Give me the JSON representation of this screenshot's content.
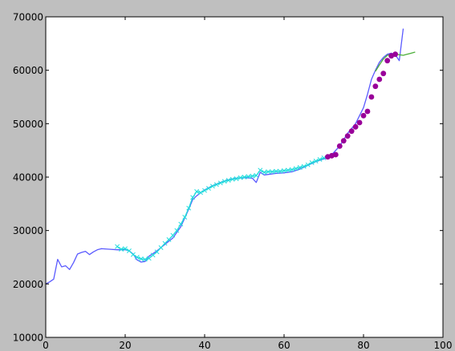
{
  "chart_data": {
    "type": "line",
    "title": "",
    "xlabel": "",
    "ylabel": "",
    "xlim": [
      0,
      100
    ],
    "ylim": [
      10000,
      70000
    ],
    "x_ticks": [
      0,
      20,
      40,
      60,
      80,
      100
    ],
    "y_ticks": [
      10000,
      20000,
      30000,
      40000,
      50000,
      60000,
      70000
    ],
    "x_tick_labels": [
      "0",
      "20",
      "40",
      "60",
      "80",
      "100"
    ],
    "y_tick_labels": [
      "10000",
      "20000",
      "30000",
      "40000",
      "50000",
      "60000",
      "70000"
    ],
    "grid": false,
    "legend": false,
    "series": [
      {
        "kind": "line",
        "color": "#5a5aff",
        "points": [
          [
            0,
            20000
          ],
          [
            1,
            20400
          ],
          [
            2,
            20900
          ],
          [
            3,
            24600
          ],
          [
            4,
            23200
          ],
          [
            5,
            23400
          ],
          [
            6,
            22700
          ],
          [
            7,
            24000
          ],
          [
            8,
            25600
          ],
          [
            9,
            25900
          ],
          [
            10,
            26100
          ],
          [
            11,
            25500
          ],
          [
            12,
            26000
          ],
          [
            13,
            26400
          ],
          [
            14,
            26600
          ],
          [
            16,
            26500
          ],
          [
            18,
            26400
          ],
          [
            20,
            26400
          ],
          [
            21,
            26200
          ],
          [
            22,
            25600
          ],
          [
            23,
            24500
          ],
          [
            24,
            24100
          ],
          [
            25,
            24200
          ],
          [
            26,
            25200
          ],
          [
            28,
            26200
          ],
          [
            30,
            27400
          ],
          [
            32,
            28600
          ],
          [
            34,
            30700
          ],
          [
            36,
            34000
          ],
          [
            37,
            35800
          ],
          [
            38,
            36500
          ],
          [
            40,
            37600
          ],
          [
            42,
            38400
          ],
          [
            44,
            39000
          ],
          [
            46,
            39500
          ],
          [
            48,
            39800
          ],
          [
            50,
            39900
          ],
          [
            52,
            39800
          ],
          [
            53,
            39000
          ],
          [
            54,
            40900
          ],
          [
            55,
            40400
          ],
          [
            56,
            40500
          ],
          [
            58,
            40700
          ],
          [
            60,
            40800
          ],
          [
            62,
            41000
          ],
          [
            64,
            41500
          ],
          [
            66,
            42200
          ],
          [
            68,
            42900
          ],
          [
            70,
            43400
          ],
          [
            72,
            44200
          ],
          [
            74,
            45800
          ],
          [
            76,
            48200
          ],
          [
            78,
            50000
          ],
          [
            79,
            51500
          ],
          [
            80,
            53000
          ],
          [
            81,
            55500
          ],
          [
            82,
            58300
          ],
          [
            83,
            60000
          ],
          [
            84,
            61500
          ],
          [
            85,
            62400
          ],
          [
            86,
            63000
          ],
          [
            87,
            63200
          ],
          [
            88,
            62900
          ],
          [
            89,
            61800
          ],
          [
            90,
            67800
          ]
        ]
      },
      {
        "kind": "line-x",
        "color": "#22dcdc",
        "points": [
          [
            18,
            27000
          ],
          [
            19,
            26500
          ],
          [
            20,
            26600
          ],
          [
            21,
            26200
          ],
          [
            22,
            25500
          ],
          [
            23,
            25000
          ],
          [
            24,
            24700
          ],
          [
            25,
            24600
          ],
          [
            26,
            24800
          ],
          [
            27,
            25400
          ],
          [
            28,
            26000
          ],
          [
            29,
            26800
          ],
          [
            30,
            27600
          ],
          [
            31,
            28300
          ],
          [
            32,
            29100
          ],
          [
            33,
            30000
          ],
          [
            34,
            31200
          ],
          [
            35,
            32500
          ],
          [
            36,
            34200
          ],
          [
            37,
            36200
          ],
          [
            38,
            37300
          ],
          [
            39,
            37100
          ],
          [
            40,
            37500
          ],
          [
            41,
            37900
          ],
          [
            42,
            38300
          ],
          [
            43,
            38600
          ],
          [
            44,
            38900
          ],
          [
            45,
            39200
          ],
          [
            46,
            39400
          ],
          [
            47,
            39600
          ],
          [
            48,
            39700
          ],
          [
            49,
            39900
          ],
          [
            50,
            40000
          ],
          [
            51,
            40100
          ],
          [
            52,
            40200
          ],
          [
            53,
            40300
          ],
          [
            54,
            41300
          ],
          [
            55,
            40900
          ],
          [
            56,
            41000
          ],
          [
            57,
            41000
          ],
          [
            58,
            41100
          ],
          [
            59,
            41100
          ],
          [
            60,
            41200
          ],
          [
            61,
            41300
          ],
          [
            62,
            41400
          ],
          [
            63,
            41600
          ],
          [
            64,
            41800
          ],
          [
            65,
            42000
          ],
          [
            66,
            42300
          ],
          [
            67,
            42700
          ],
          [
            68,
            43000
          ],
          [
            69,
            43300
          ],
          [
            70,
            43600
          ]
        ]
      },
      {
        "kind": "line",
        "color": "#4caf3a",
        "points": [
          [
            83,
            59800
          ],
          [
            84,
            61000
          ],
          [
            85,
            62100
          ],
          [
            86,
            62800
          ],
          [
            87,
            63000
          ],
          [
            88,
            63100
          ],
          [
            89,
            62900
          ],
          [
            90,
            62800
          ],
          [
            91,
            63000
          ],
          [
            92,
            63200
          ],
          [
            93,
            63400
          ]
        ]
      },
      {
        "kind": "markers",
        "color": "#990099",
        "points": [
          [
            71,
            43800
          ],
          [
            72,
            44000
          ],
          [
            73,
            44200
          ],
          [
            74,
            45800
          ],
          [
            75,
            46800
          ],
          [
            76,
            47700
          ],
          [
            77,
            48600
          ],
          [
            78,
            49400
          ],
          [
            79,
            50200
          ],
          [
            80,
            51500
          ],
          [
            81,
            52300
          ],
          [
            82,
            55000
          ],
          [
            83,
            57000
          ],
          [
            84,
            58300
          ],
          [
            85,
            59400
          ],
          [
            86,
            61800
          ],
          [
            87,
            62700
          ],
          [
            88,
            63000
          ]
        ]
      }
    ]
  }
}
